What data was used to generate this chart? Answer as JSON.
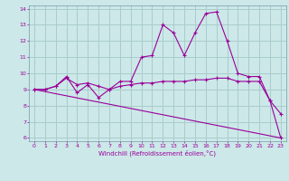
{
  "xlabel": "Windchill (Refroidissement éolien,°C)",
  "background_color": "#cce8e8",
  "grid_color": "#aacccc",
  "line_color": "#990099",
  "spine_color": "#7799aa",
  "xlim": [
    -0.5,
    23.5
  ],
  "ylim": [
    5.8,
    14.2
  ],
  "x_ticks": [
    0,
    1,
    2,
    3,
    4,
    5,
    6,
    7,
    8,
    9,
    10,
    11,
    12,
    13,
    14,
    15,
    16,
    17,
    18,
    19,
    20,
    21,
    22,
    23
  ],
  "y_ticks": [
    6,
    7,
    8,
    9,
    10,
    11,
    12,
    13,
    14
  ],
  "series": [
    {
      "x": [
        0,
        1,
        2,
        3,
        4,
        5,
        6,
        7,
        8,
        9,
        10,
        11,
        12,
        13,
        14,
        15,
        16,
        17,
        18,
        19,
        20,
        21,
        22,
        23
      ],
      "y": [
        9.0,
        9.0,
        9.2,
        9.8,
        8.8,
        9.3,
        8.5,
        9.0,
        9.5,
        9.5,
        11.0,
        11.1,
        13.0,
        12.5,
        11.1,
        12.5,
        13.7,
        13.8,
        12.0,
        10.0,
        9.8,
        9.8,
        8.3,
        7.5
      ]
    },
    {
      "x": [
        0,
        1,
        2,
        3,
        4,
        5,
        6,
        7,
        8,
        9,
        10,
        11,
        12,
        13,
        14,
        15,
        16,
        17,
        18,
        19,
        20,
        21,
        22,
        23
      ],
      "y": [
        9.0,
        9.0,
        9.2,
        9.7,
        9.3,
        9.4,
        9.2,
        9.0,
        9.2,
        9.3,
        9.4,
        9.4,
        9.5,
        9.5,
        9.5,
        9.6,
        9.6,
        9.7,
        9.7,
        9.5,
        9.5,
        9.5,
        8.3,
        6.0
      ]
    },
    {
      "x": [
        0,
        23
      ],
      "y": [
        9.0,
        6.0
      ]
    }
  ]
}
